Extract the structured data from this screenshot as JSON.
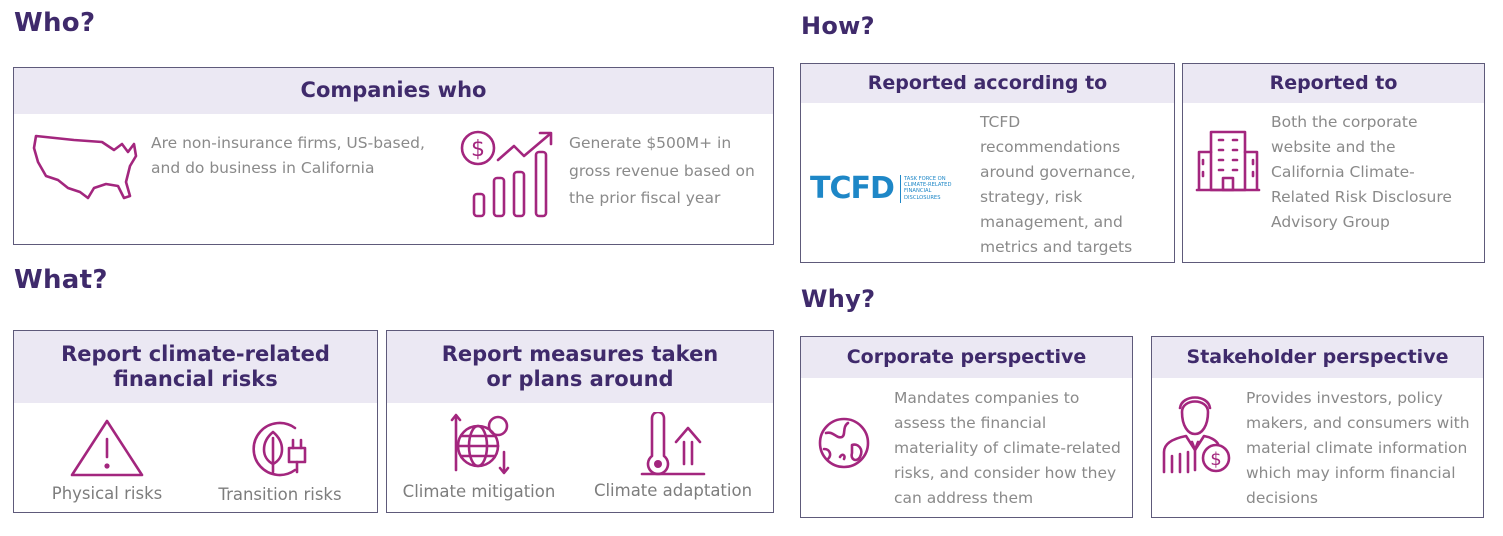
{
  "who": {
    "title": "Who?",
    "box_title": "Companies who",
    "item1": "Are non-insurance firms, US-based, and do business in California",
    "item2": "Generate $500M+ in gross revenue based on the prior fiscal year"
  },
  "what": {
    "title": "What?",
    "box1_title": "Report climate-related financial risks",
    "box1_item1": "Physical risks",
    "box1_item2": "Transition risks",
    "box2_title": "Report measures taken or plans around",
    "box2_item1": "Climate mitigation",
    "box2_item2": "Climate adaptation"
  },
  "how": {
    "title": "How?",
    "box1_title": "Reported according to",
    "box1_text": "TCFD recommendations around governance, strategy, risk management, and metrics and targets",
    "tcfd_logo": "TCFD",
    "tcfd_logo_sub": "TASK FORCE ON CLIMATE-RELATED FINANCIAL DISCLOSURES",
    "box2_title": "Reported to",
    "box2_text": "Both the corporate website and the California Climate-Related Risk Disclosure Advisory Group"
  },
  "why": {
    "title": "Why?",
    "box1_title": "Corporate perspective",
    "box1_text": "Mandates companies to assess the financial materiality of climate-related risks, and consider how they can address them",
    "box2_title": "Stakeholder perspective",
    "box2_text": "Provides investors, policy makers, and consumers with material climate information which may inform financial decisions"
  },
  "colors": {
    "heading": "#3f2a6b",
    "icon": "#a3267e",
    "header_fill": "#ebe8f3",
    "tcfd_blue": "#1e87c7",
    "text": "#8a8a8a"
  },
  "icons": [
    "usa-map-icon",
    "dollar-growth-icon",
    "warning-icon",
    "leaf-plug-icon",
    "globe-arrows-icon",
    "thermometer-arrow-icon",
    "tcfd-logo",
    "office-building-icon",
    "earth-hand-icon",
    "businessman-dollar-icon"
  ]
}
